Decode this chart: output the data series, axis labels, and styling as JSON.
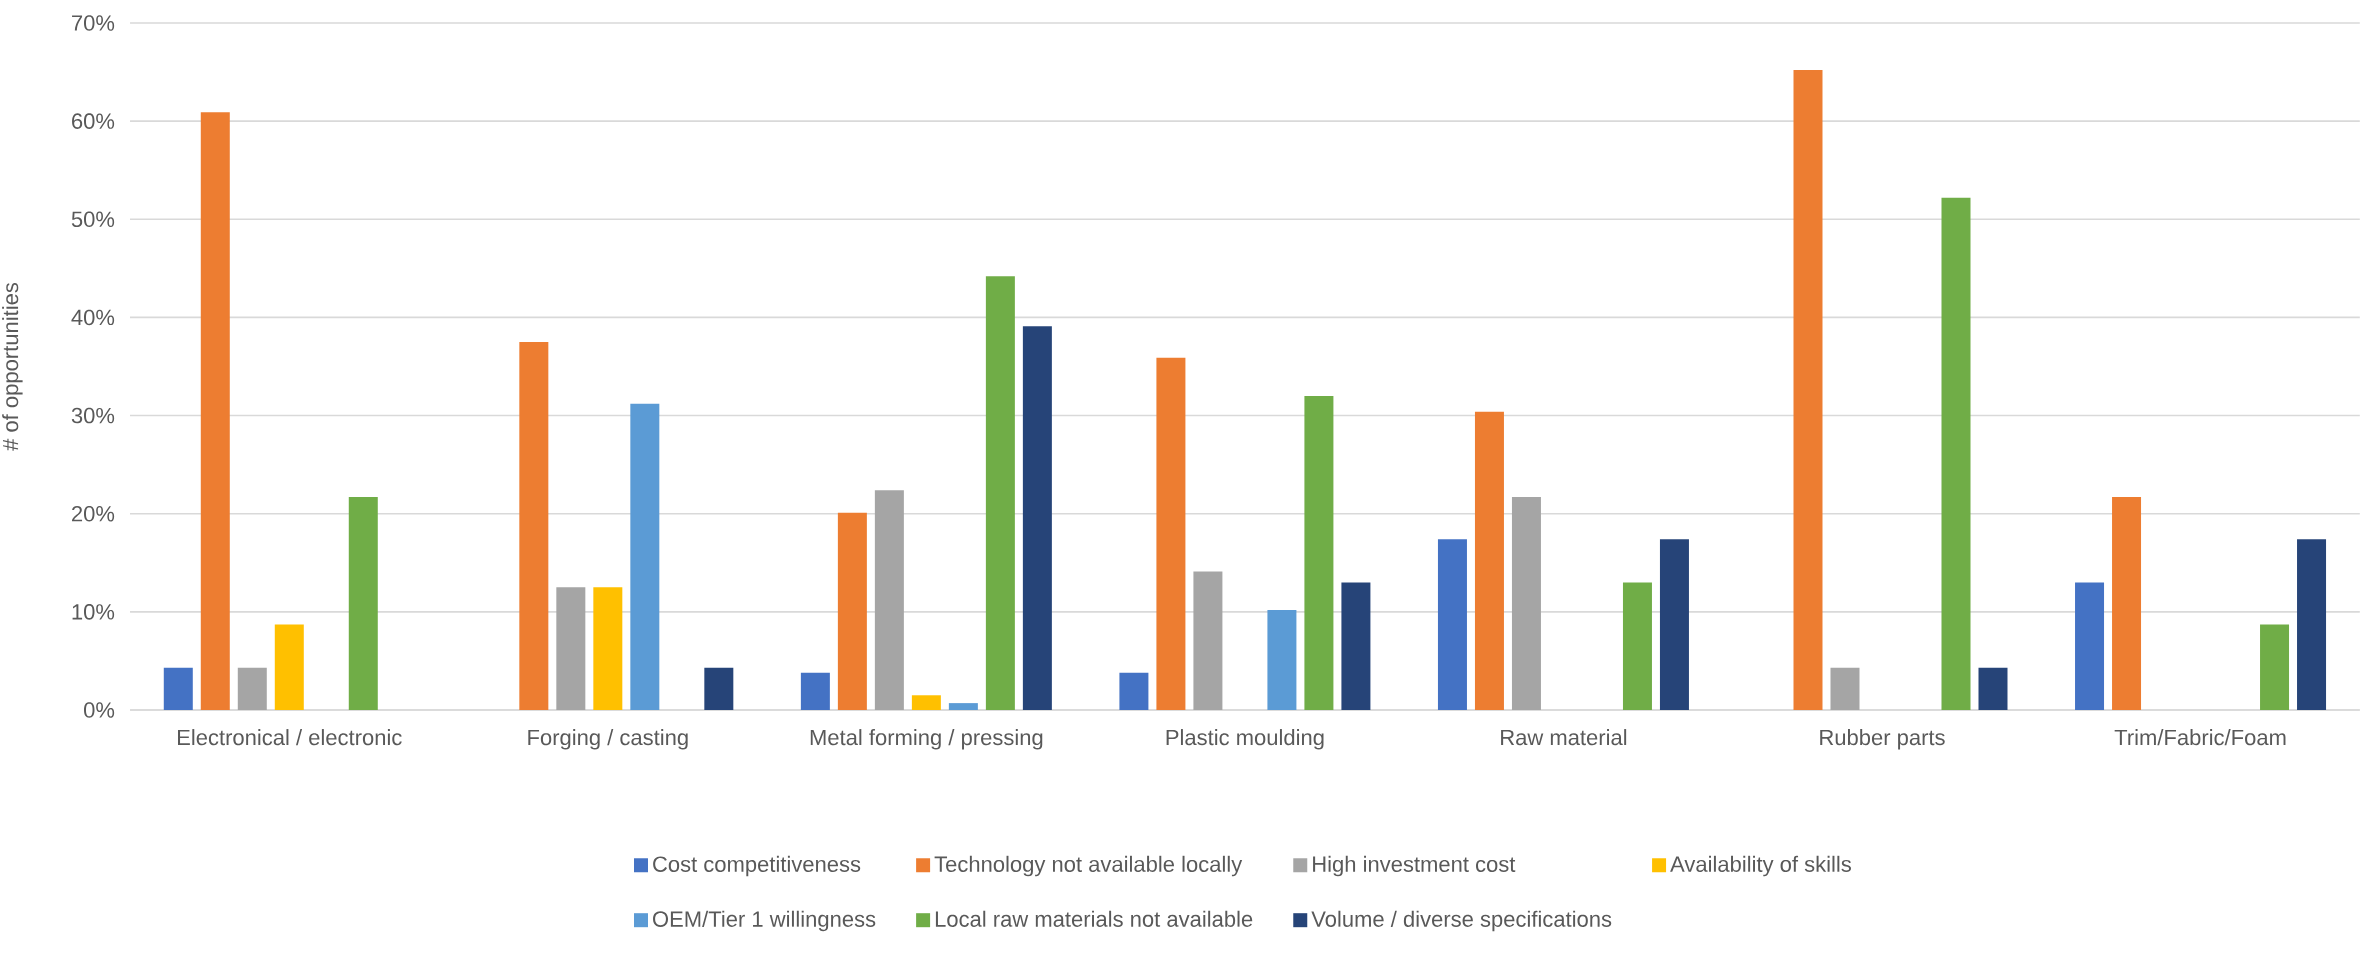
{
  "chart_data": {
    "type": "bar",
    "ylabel": "# of opportunities",
    "categories": [
      "Electronical / electronic",
      "Forging / casting",
      "Metal forming  / pressing",
      "Plastic moulding",
      "Raw material",
      "Rubber parts",
      "Trim/Fabric/Foam"
    ],
    "series": [
      {
        "name": "Cost competitiveness",
        "color": "#4472c4",
        "values": [
          4.3,
          null,
          3.8,
          3.8,
          17.4,
          null,
          13.0
        ]
      },
      {
        "name": "Technology not available locally",
        "color": "#ed7d31",
        "values": [
          60.9,
          37.5,
          20.1,
          35.9,
          30.4,
          65.2,
          21.7
        ]
      },
      {
        "name": "High investment cost",
        "color": "#a5a5a5",
        "values": [
          4.3,
          12.5,
          22.4,
          14.1,
          21.7,
          4.3,
          null
        ]
      },
      {
        "name": "Availability of skills",
        "color": "#ffc000",
        "values": [
          8.7,
          12.5,
          1.5,
          null,
          null,
          null,
          null
        ]
      },
      {
        "name": "OEM/Tier 1 willingness",
        "color": "#5b9bd5",
        "values": [
          null,
          31.2,
          0.7,
          10.2,
          null,
          null,
          null
        ]
      },
      {
        "name": "Local raw materials not available",
        "color": "#70ad47",
        "values": [
          21.7,
          null,
          44.2,
          32.0,
          13.0,
          52.2,
          8.7
        ]
      },
      {
        "name": "Volume / diverse specifications",
        "color": "#264478",
        "values": [
          null,
          4.3,
          39.1,
          13.0,
          17.4,
          4.3,
          17.4
        ]
      }
    ],
    "ylim": [
      0,
      70
    ],
    "yticks": [
      {
        "value": 0,
        "label": "0%"
      },
      {
        "value": 10,
        "label": "10%"
      },
      {
        "value": 20,
        "label": "20%"
      },
      {
        "value": 30,
        "label": "30%"
      },
      {
        "value": 40,
        "label": "40%"
      },
      {
        "value": 50,
        "label": "50%"
      },
      {
        "value": 60,
        "label": "60%"
      },
      {
        "value": 70,
        "label": "70%"
      }
    ],
    "grid": "y",
    "legend": "bottom"
  }
}
